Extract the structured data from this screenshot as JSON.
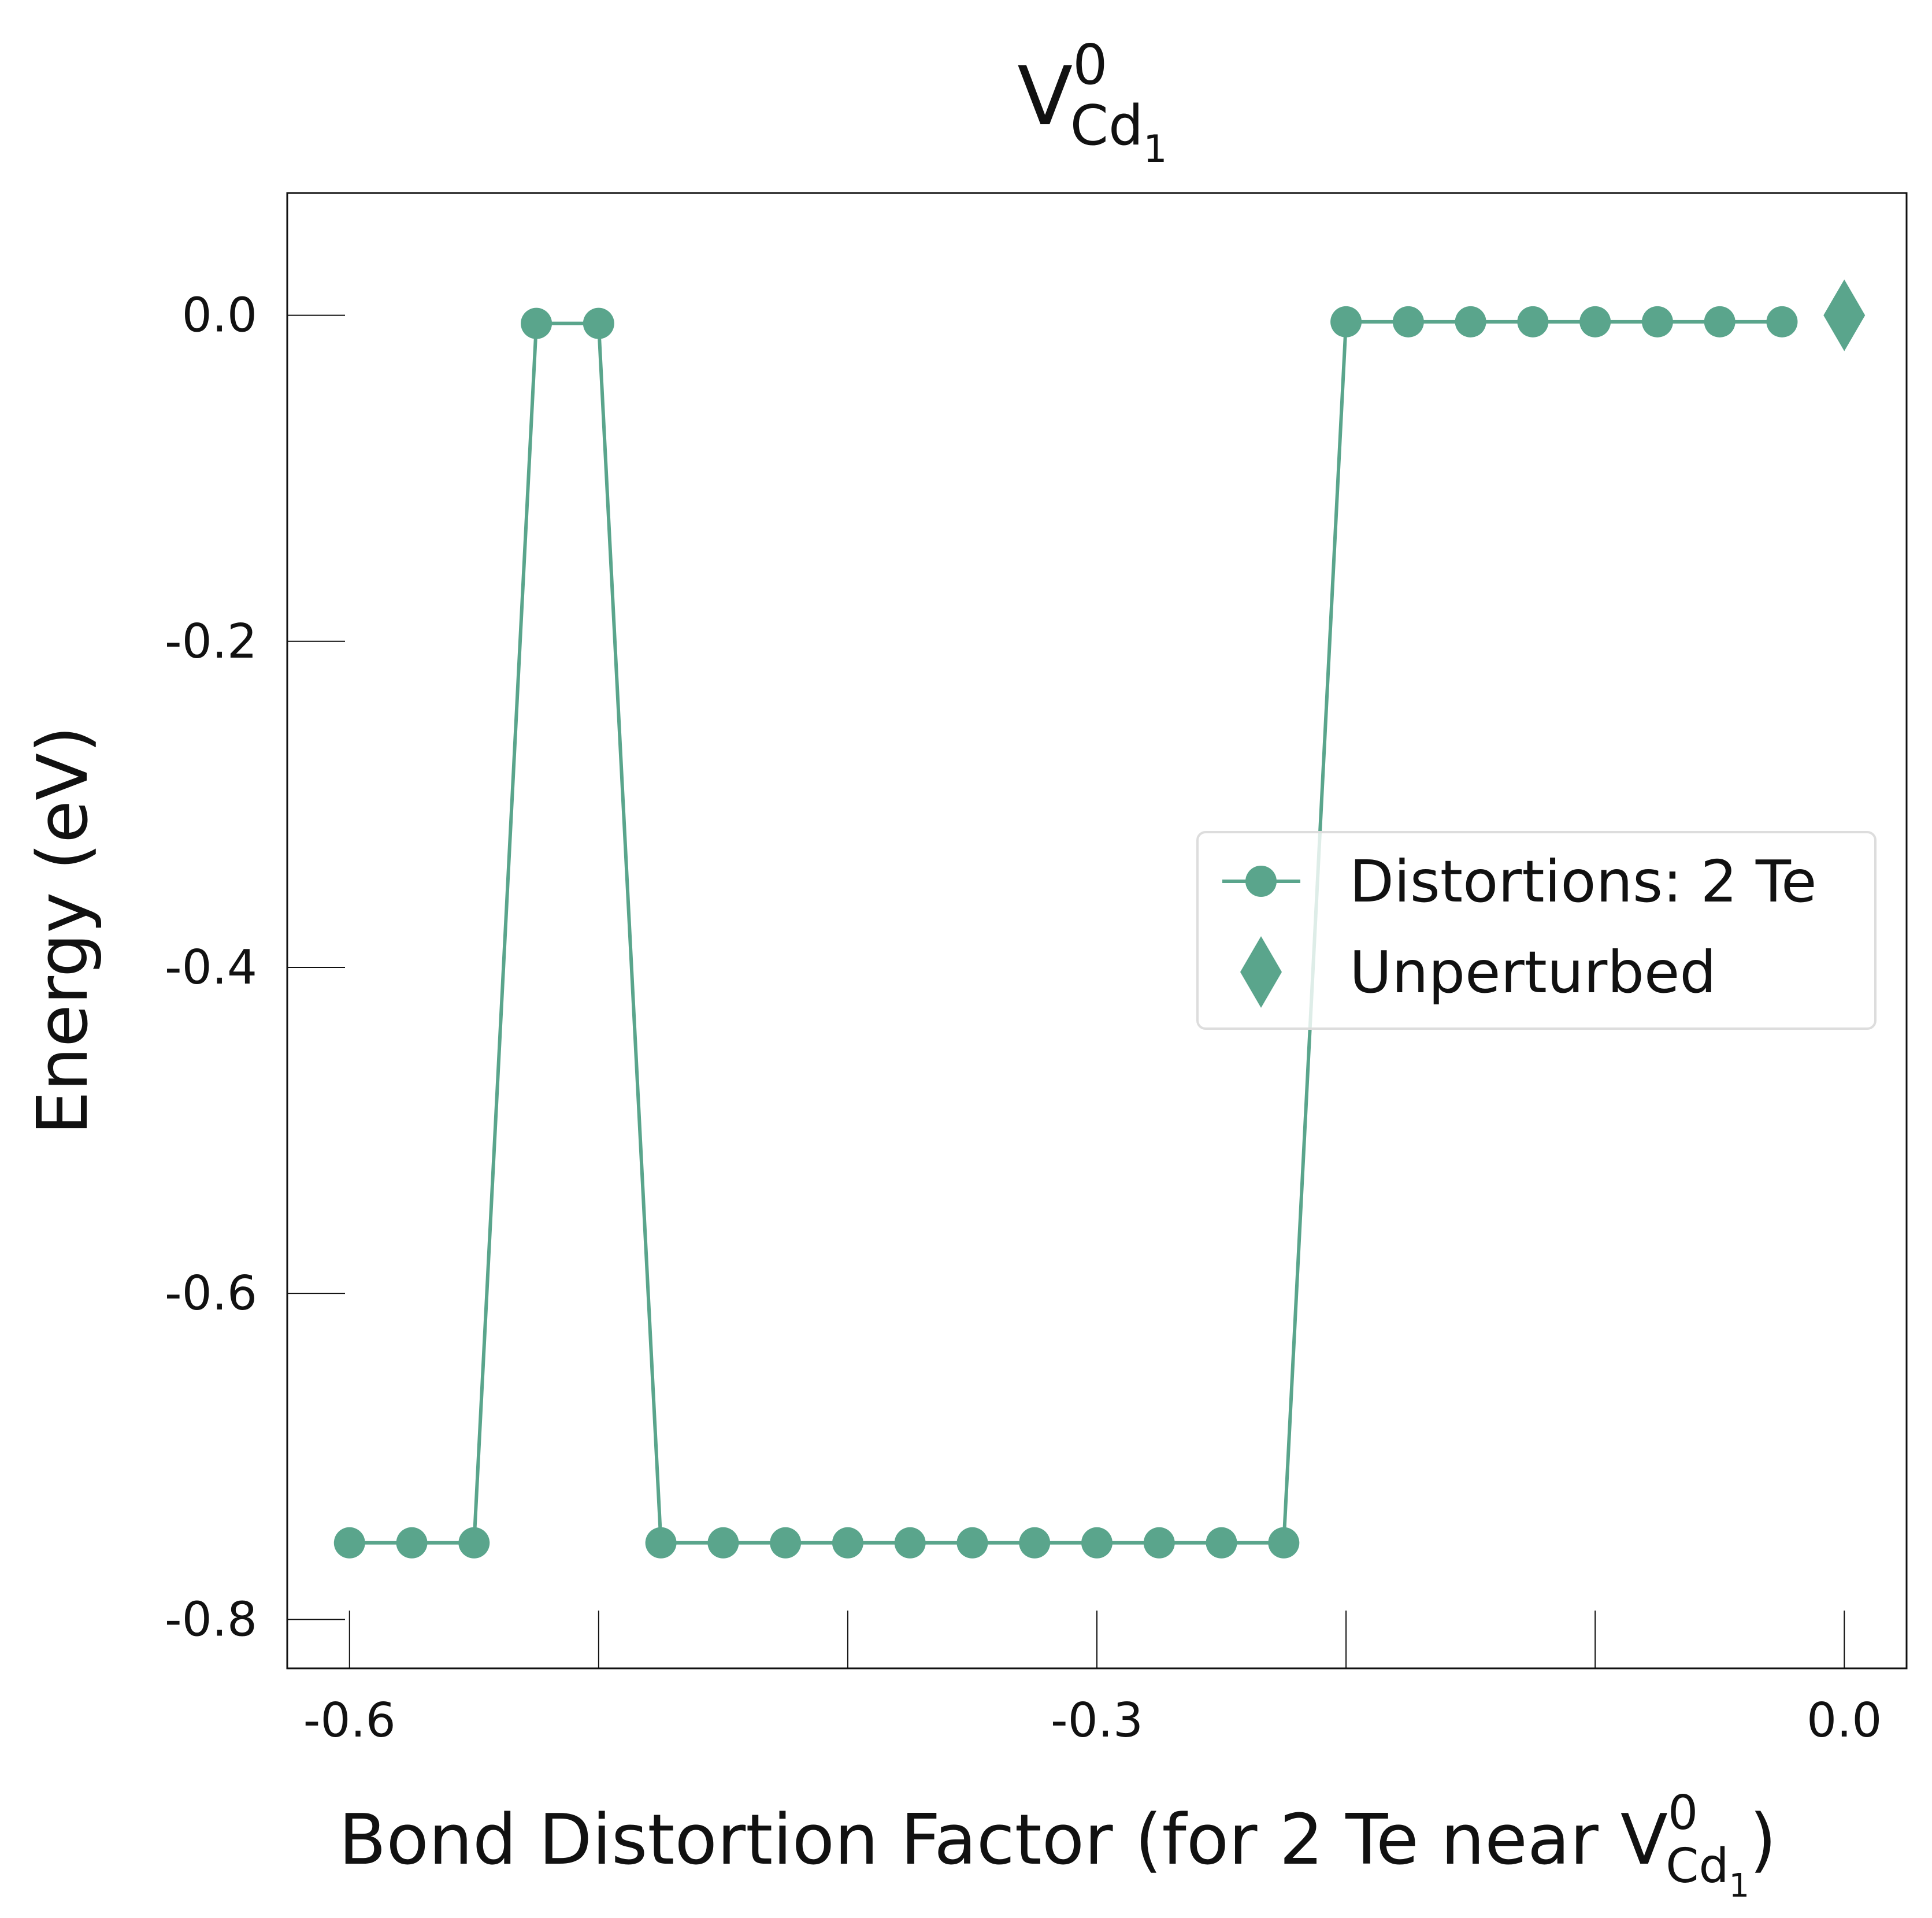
{
  "chart_data": {
    "type": "line",
    "title": {
      "main": "V",
      "sup": "0",
      "sub": "Cd",
      "subsub": "1"
    },
    "xlabel": {
      "main": "Bond Distortion Factor (for 2 Te near V",
      "sup": "0",
      "sub": "Cd",
      "subsub": "1",
      "close": ")"
    },
    "ylabel": "Energy (eV)",
    "xlim": [
      -0.625,
      0.025
    ],
    "ylim": [
      -0.83,
      0.075
    ],
    "x_ticks": [
      -0.6,
      -0.5,
      -0.4,
      -0.3,
      -0.2,
      -0.1,
      0.0
    ],
    "x_tick_labels": [
      "-0.6",
      "",
      "",
      "-0.3",
      "",
      "",
      "0.0"
    ],
    "y_ticks": [
      0.0,
      -0.2,
      -0.4,
      -0.6,
      -0.8
    ],
    "y_tick_labels": [
      "0.0",
      "-0.2",
      "-0.4",
      "-0.6",
      "-0.8"
    ],
    "grid": false,
    "legend_position": "center-right",
    "color": "#5aa58c",
    "series": [
      {
        "name": "Distortions: 2 Te",
        "marker": "circle",
        "x": [
          -0.6,
          -0.575,
          -0.55,
          -0.525,
          -0.5,
          -0.475,
          -0.45,
          -0.425,
          -0.4,
          -0.375,
          -0.35,
          -0.325,
          -0.3,
          -0.275,
          -0.25,
          -0.225,
          -0.2,
          -0.175,
          -0.15,
          -0.125,
          -0.1,
          -0.075,
          -0.05,
          -0.025
        ],
        "y": [
          -0.753,
          -0.753,
          -0.753,
          -0.005,
          -0.005,
          -0.753,
          -0.753,
          -0.753,
          -0.753,
          -0.753,
          -0.753,
          -0.753,
          -0.753,
          -0.753,
          -0.753,
          -0.753,
          -0.004,
          -0.004,
          -0.004,
          -0.004,
          -0.004,
          -0.004,
          -0.004,
          -0.004
        ]
      },
      {
        "name": "Unperturbed",
        "marker": "diamond",
        "x": [
          0.0
        ],
        "y": [
          0.0
        ]
      }
    ]
  }
}
